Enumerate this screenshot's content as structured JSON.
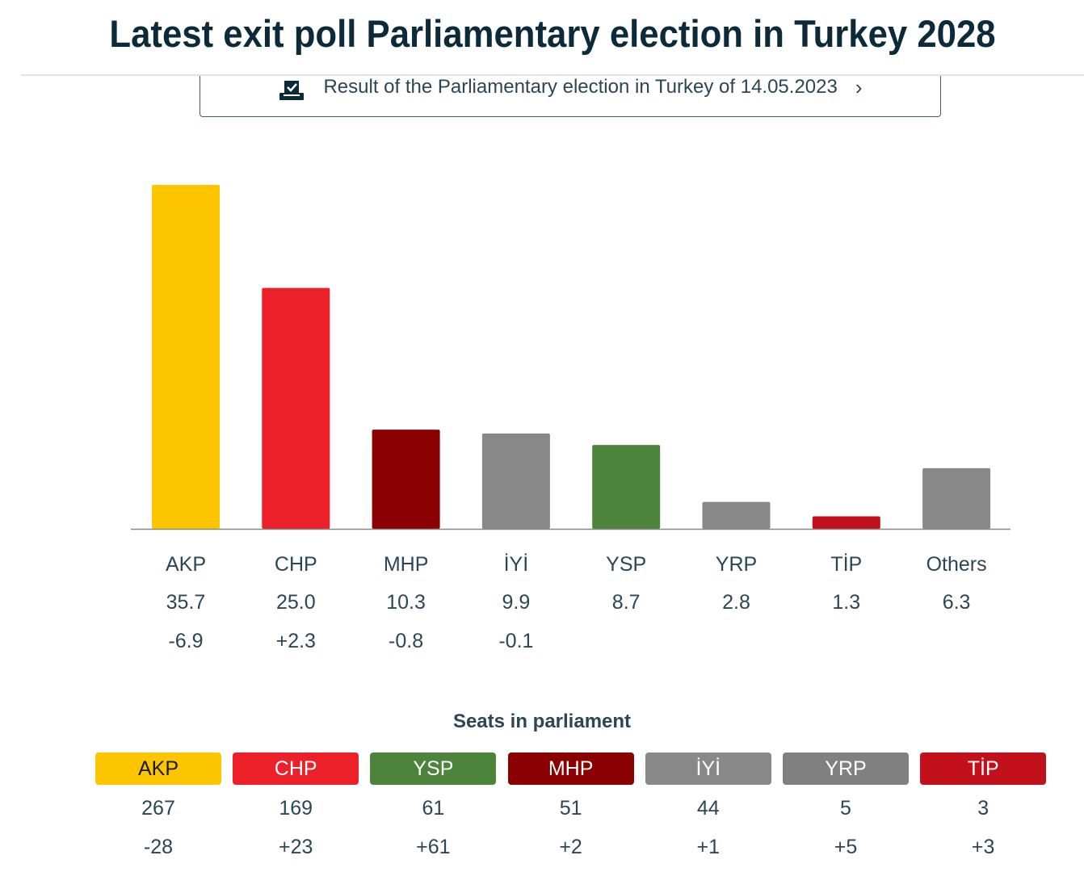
{
  "header": {
    "title": "Latest exit poll Parliamentary election in Turkey 2028"
  },
  "result_link": {
    "label": "Result of the Parliamentary election in Turkey of 14.05.2023",
    "icon": "ballot-box-icon",
    "chevron": "›"
  },
  "chart_data": {
    "type": "bar",
    "title": "",
    "xlabel": "",
    "ylabel": "",
    "ylim": [
      0,
      35.7
    ],
    "grid": false,
    "categories": [
      "AKP",
      "CHP",
      "MHP",
      "İYİ",
      "YSP",
      "YRP",
      "TİP",
      "Others"
    ],
    "values": [
      "35.7",
      "25.0",
      "10.3",
      "9.9",
      "8.7",
      "2.8",
      "1.3",
      "6.3"
    ],
    "changes": [
      "-6.9",
      "+2.3",
      "-0.8",
      "-0.1",
      "",
      "",
      "",
      ""
    ],
    "colors": [
      "#fdc500",
      "#ec2029",
      "#8b0000",
      "#888888",
      "#4b843a",
      "#888888",
      "#c2111a",
      "#888888"
    ]
  },
  "seats": {
    "title": "Seats in parliament",
    "parties": [
      {
        "name": "AKP",
        "seats": "267",
        "change": "-28",
        "color": "#fdc500",
        "text": "#1a1a1a"
      },
      {
        "name": "CHP",
        "seats": "169",
        "change": "+23",
        "color": "#ec2029",
        "text": "#ffffff"
      },
      {
        "name": "YSP",
        "seats": "61",
        "change": "+61",
        "color": "#4b843a",
        "text": "#ffffff"
      },
      {
        "name": "MHP",
        "seats": "51",
        "change": "+2",
        "color": "#8b0000",
        "text": "#ffffff"
      },
      {
        "name": "İYİ",
        "seats": "44",
        "change": "+1",
        "color": "#888888",
        "text": "#ffffff"
      },
      {
        "name": "YRP",
        "seats": "5",
        "change": "+5",
        "color": "#808080",
        "text": "#ffffff"
      },
      {
        "name": "TİP",
        "seats": "3",
        "change": "+3",
        "color": "#c2111a",
        "text": "#ffffff"
      }
    ]
  }
}
